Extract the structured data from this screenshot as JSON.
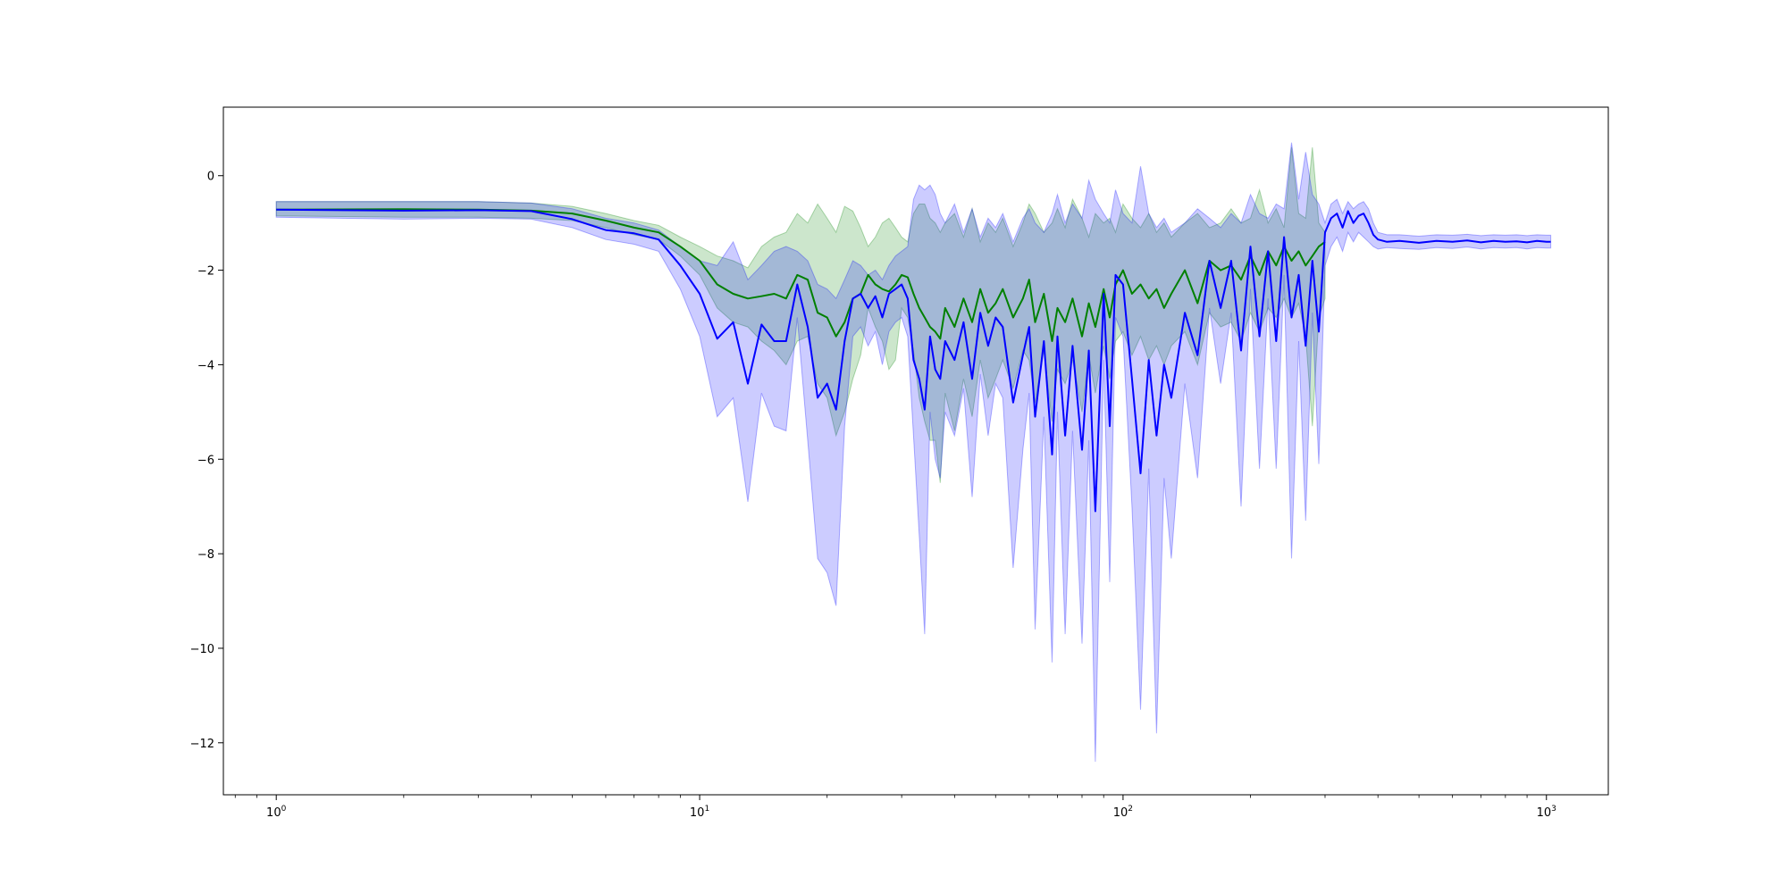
{
  "chart_data": {
    "type": "line",
    "title": "",
    "xlabel": "",
    "ylabel": "",
    "xscale": "log",
    "xlim": [
      0.75,
      1400
    ],
    "ylim": [
      -13.1,
      1.45
    ],
    "grid": false,
    "legend": "none",
    "x_ticks": [
      {
        "value": 1,
        "base": "10",
        "exp": "0"
      },
      {
        "value": 10,
        "base": "10",
        "exp": "1"
      },
      {
        "value": 100,
        "base": "10",
        "exp": "2"
      },
      {
        "value": 1000,
        "base": "10",
        "exp": "3"
      }
    ],
    "y_ticks": [
      {
        "value": 0,
        "label": "0"
      },
      {
        "value": -2,
        "label": "−2"
      },
      {
        "value": -4,
        "label": "−4"
      },
      {
        "value": -6,
        "label": "−6"
      },
      {
        "value": -8,
        "label": "−8"
      },
      {
        "value": -10,
        "label": "−10"
      },
      {
        "value": -12,
        "label": "−12"
      }
    ],
    "series": [
      {
        "color": "#008000",
        "band_color": "#008000",
        "band_opacity": 0.2,
        "x": [
          1,
          2,
          3,
          4,
          5,
          6,
          7,
          8,
          9,
          10,
          11,
          12,
          13,
          14,
          15,
          16,
          17,
          18,
          19,
          20,
          21,
          22,
          23,
          24,
          25,
          26,
          27,
          28,
          29,
          30,
          31,
          32,
          33,
          34,
          35,
          36,
          37,
          38,
          40,
          42,
          44,
          46,
          48,
          50,
          52,
          55,
          58,
          60,
          62,
          65,
          68,
          70,
          73,
          76,
          80,
          83,
          86,
          90,
          93,
          96,
          100,
          105,
          110,
          115,
          120,
          125,
          130,
          140,
          150,
          160,
          170,
          180,
          190,
          200,
          210,
          220,
          230,
          240,
          250,
          260,
          270,
          280,
          290,
          300
        ],
        "y": [
          -0.72,
          -0.71,
          -0.72,
          -0.74,
          -0.8,
          -0.95,
          -1.1,
          -1.2,
          -1.5,
          -1.8,
          -2.3,
          -2.5,
          -2.6,
          -2.55,
          -2.5,
          -2.6,
          -2.1,
          -2.2,
          -2.9,
          -3.0,
          -3.4,
          -3.1,
          -2.6,
          -2.5,
          -2.1,
          -2.3,
          -2.4,
          -2.45,
          -2.3,
          -2.1,
          -2.15,
          -2.5,
          -2.8,
          -3.0,
          -3.2,
          -3.3,
          -3.45,
          -2.8,
          -3.2,
          -2.6,
          -3.1,
          -2.4,
          -2.9,
          -2.7,
          -2.4,
          -3.0,
          -2.6,
          -2.2,
          -3.1,
          -2.5,
          -3.5,
          -2.8,
          -3.1,
          -2.6,
          -3.4,
          -2.7,
          -3.2,
          -2.4,
          -3.0,
          -2.3,
          -2.0,
          -2.5,
          -2.3,
          -2.6,
          -2.4,
          -2.8,
          -2.5,
          -2.0,
          -2.7,
          -1.8,
          -2.0,
          -1.9,
          -2.2,
          -1.7,
          -2.1,
          -1.6,
          -1.9,
          -1.5,
          -1.8,
          -1.6,
          -1.9,
          -1.7,
          -1.5,
          -1.4
        ],
        "upper": [
          -0.55,
          -0.55,
          -0.55,
          -0.58,
          -0.65,
          -0.8,
          -0.95,
          -1.05,
          -1.3,
          -1.5,
          -1.7,
          -1.8,
          -1.95,
          -1.5,
          -1.3,
          -1.2,
          -0.8,
          -1.0,
          -0.6,
          -0.9,
          -1.2,
          -0.65,
          -0.75,
          -1.1,
          -1.5,
          -1.3,
          -1.0,
          -0.9,
          -1.1,
          -1.3,
          -1.4,
          -0.8,
          -0.6,
          -0.6,
          -0.9,
          -1.0,
          -1.2,
          -1.0,
          -0.8,
          -1.3,
          -0.7,
          -1.4,
          -1.0,
          -1.2,
          -0.9,
          -1.5,
          -1.0,
          -0.6,
          -0.8,
          -1.2,
          -1.0,
          -0.7,
          -1.1,
          -0.5,
          -0.9,
          -1.3,
          -0.8,
          -1.0,
          -0.9,
          -1.2,
          -0.6,
          -0.9,
          -1.1,
          -0.8,
          -1.2,
          -1.0,
          -1.3,
          -1.0,
          -0.8,
          -1.1,
          -1.0,
          -0.7,
          -1.0,
          -0.9,
          -0.3,
          -1.0,
          -0.7,
          -1.1,
          0.6,
          -0.8,
          -0.9,
          0.6,
          -1.0,
          -1.2
        ],
        "lower": [
          -0.85,
          -0.88,
          -0.88,
          -0.9,
          -0.95,
          -1.1,
          -1.25,
          -1.35,
          -1.7,
          -2.1,
          -2.8,
          -3.1,
          -3.2,
          -3.5,
          -3.7,
          -4.0,
          -3.5,
          -3.4,
          -4.4,
          -4.7,
          -5.5,
          -5.0,
          -4.3,
          -3.8,
          -2.8,
          -3.2,
          -3.5,
          -4.1,
          -3.9,
          -2.8,
          -3.0,
          -3.7,
          -4.7,
          -5.2,
          -5.6,
          -5.6,
          -6.5,
          -4.6,
          -5.4,
          -4.3,
          -5.1,
          -3.9,
          -4.7,
          -4.3,
          -3.9,
          -4.5,
          -3.7,
          -3.9,
          -4.8,
          -3.7,
          -5.2,
          -4.1,
          -4.4,
          -3.9,
          -5.0,
          -3.8,
          -4.6,
          -3.6,
          -4.3,
          -3.5,
          -3.3,
          -3.8,
          -3.4,
          -3.9,
          -3.6,
          -4.0,
          -3.6,
          -3.3,
          -4.0,
          -2.9,
          -3.2,
          -3.1,
          -3.5,
          -2.9,
          -3.3,
          -2.8,
          -3.0,
          -2.6,
          -3.0,
          -2.7,
          -3.4,
          -5.3,
          -3.0,
          -2.6
        ]
      },
      {
        "color": "#0000ff",
        "band_color": "#0000ff",
        "band_opacity": 0.2,
        "x": [
          1,
          2,
          3,
          4,
          5,
          6,
          7,
          8,
          9,
          10,
          11,
          12,
          13,
          14,
          15,
          16,
          17,
          18,
          19,
          20,
          21,
          22,
          23,
          24,
          25,
          26,
          27,
          28,
          29,
          30,
          31,
          32,
          33,
          34,
          35,
          36,
          37,
          38,
          40,
          42,
          44,
          46,
          48,
          50,
          52,
          55,
          58,
          60,
          62,
          65,
          68,
          70,
          73,
          76,
          80,
          83,
          86,
          90,
          93,
          96,
          100,
          105,
          110,
          115,
          120,
          125,
          130,
          140,
          150,
          160,
          170,
          180,
          190,
          200,
          210,
          220,
          230,
          240,
          250,
          260,
          270,
          280,
          290,
          300,
          310,
          320,
          330,
          340,
          350,
          360,
          370,
          380,
          390,
          400,
          420,
          450,
          500,
          550,
          600,
          650,
          700,
          750,
          800,
          850,
          900,
          950,
          1000,
          1024
        ],
        "y": [
          -0.72,
          -0.74,
          -0.73,
          -0.75,
          -0.92,
          -1.15,
          -1.22,
          -1.35,
          -1.9,
          -2.5,
          -3.45,
          -3.1,
          -4.4,
          -3.15,
          -3.5,
          -3.5,
          -2.3,
          -3.2,
          -4.7,
          -4.4,
          -4.95,
          -3.5,
          -2.6,
          -2.5,
          -2.8,
          -2.55,
          -3.0,
          -2.5,
          -2.4,
          -2.3,
          -2.6,
          -3.9,
          -4.3,
          -4.95,
          -3.4,
          -4.1,
          -4.3,
          -3.5,
          -3.9,
          -3.1,
          -4.3,
          -2.9,
          -3.6,
          -3.0,
          -3.2,
          -4.8,
          -3.8,
          -3.2,
          -5.1,
          -3.5,
          -5.9,
          -3.4,
          -5.5,
          -3.6,
          -5.8,
          -3.7,
          -7.1,
          -2.5,
          -5.3,
          -2.1,
          -2.3,
          -4.3,
          -6.3,
          -3.9,
          -5.5,
          -4.0,
          -4.7,
          -2.9,
          -3.8,
          -1.8,
          -2.8,
          -1.8,
          -3.7,
          -1.5,
          -3.4,
          -1.6,
          -3.5,
          -1.3,
          -3.0,
          -2.1,
          -3.6,
          -1.8,
          -3.3,
          -1.2,
          -0.9,
          -0.8,
          -1.1,
          -0.75,
          -1.0,
          -0.85,
          -0.8,
          -1.0,
          -1.25,
          -1.35,
          -1.4,
          -1.38,
          -1.42,
          -1.38,
          -1.4,
          -1.37,
          -1.41,
          -1.38,
          -1.4,
          -1.39,
          -1.41,
          -1.38,
          -1.4,
          -1.4
        ],
        "upper": [
          -0.55,
          -0.55,
          -0.55,
          -0.58,
          -0.7,
          -0.9,
          -1.0,
          -1.15,
          -1.5,
          -1.8,
          -1.9,
          -1.4,
          -2.2,
          -1.9,
          -1.6,
          -1.5,
          -1.6,
          -1.8,
          -2.3,
          -2.4,
          -2.6,
          -2.2,
          -1.8,
          -1.9,
          -2.1,
          -2.0,
          -2.2,
          -1.9,
          -1.7,
          -1.6,
          -1.5,
          -0.5,
          -0.2,
          -0.3,
          -0.2,
          -0.4,
          -0.8,
          -1.0,
          -0.6,
          -1.2,
          -0.7,
          -1.3,
          -0.9,
          -1.1,
          -0.8,
          -1.4,
          -0.9,
          -0.7,
          -1.0,
          -1.2,
          -0.8,
          -0.4,
          -1.0,
          -0.6,
          -0.9,
          -0.1,
          -0.5,
          -0.8,
          -1.0,
          -0.3,
          -0.8,
          -1.0,
          0.2,
          -0.8,
          -1.1,
          -0.9,
          -1.2,
          -1.0,
          -0.7,
          -0.9,
          -1.1,
          -0.8,
          -1.0,
          -0.4,
          -0.8,
          -0.9,
          -0.6,
          -0.7,
          0.7,
          -0.5,
          0.5,
          -0.4,
          -0.6,
          -1.0,
          -0.6,
          -0.5,
          -0.8,
          -0.55,
          -0.7,
          -0.6,
          -0.55,
          -0.7,
          -1.0,
          -1.2,
          -1.25,
          -1.25,
          -1.28,
          -1.25,
          -1.26,
          -1.24,
          -1.27,
          -1.25,
          -1.26,
          -1.25,
          -1.27,
          -1.25,
          -1.26,
          -1.26
        ],
        "lower": [
          -0.88,
          -0.92,
          -0.9,
          -0.92,
          -1.1,
          -1.35,
          -1.45,
          -1.6,
          -2.4,
          -3.4,
          -5.1,
          -4.7,
          -6.9,
          -4.6,
          -5.3,
          -5.4,
          -3.0,
          -5.6,
          -8.1,
          -8.4,
          -9.1,
          -5.3,
          -3.4,
          -3.2,
          -3.6,
          -3.3,
          -4.0,
          -3.3,
          -3.1,
          -3.0,
          -3.4,
          -5.5,
          -7.6,
          -9.7,
          -5.0,
          -6.0,
          -6.4,
          -5.0,
          -5.5,
          -4.5,
          -6.8,
          -4.2,
          -5.5,
          -4.4,
          -4.7,
          -8.3,
          -5.8,
          -4.6,
          -9.6,
          -5.1,
          -10.3,
          -5.0,
          -9.7,
          -5.4,
          -9.9,
          -5.6,
          -12.4,
          -3.9,
          -8.6,
          -3.0,
          -3.4,
          -7.0,
          -11.3,
          -6.2,
          -11.8,
          -6.4,
          -8.1,
          -4.4,
          -6.4,
          -2.8,
          -4.4,
          -2.9,
          -7.0,
          -2.4,
          -6.2,
          -2.6,
          -6.2,
          -2.1,
          -8.1,
          -3.5,
          -7.3,
          -2.9,
          -6.1,
          -1.9,
          -1.5,
          -1.3,
          -1.6,
          -1.2,
          -1.4,
          -1.2,
          -1.3,
          -1.4,
          -1.5,
          -1.55,
          -1.52,
          -1.54,
          -1.56,
          -1.52,
          -1.54,
          -1.51,
          -1.55,
          -1.52,
          -1.53,
          -1.52,
          -1.55,
          -1.52,
          -1.53,
          -1.53
        ]
      }
    ]
  }
}
